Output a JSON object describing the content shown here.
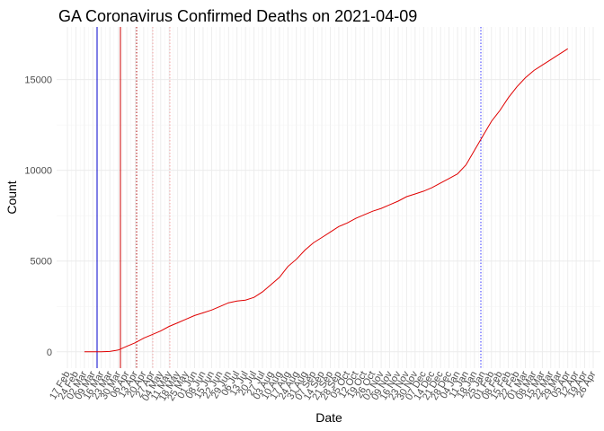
{
  "chart_data": {
    "type": "line",
    "title": "GA Coronavirus Confirmed Deaths on 2021-04-09",
    "x_label": "Date",
    "y_label": "Count",
    "categories": [
      "17 Feb",
      "24 Feb",
      "02 Mar",
      "09 Mar",
      "16 Mar",
      "23 Mar",
      "30 Mar",
      "06 Apr",
      "13 Apr",
      "20 Apr",
      "27 Apr",
      "04 May",
      "11 May",
      "18 May",
      "25 May",
      "01 Jun",
      "08 Jun",
      "15 Jun",
      "22 Jun",
      "29 Jun",
      "06 Jul",
      "13 Jul",
      "20 Jul",
      "27 Jul",
      "03 Aug",
      "10 Aug",
      "17 Aug",
      "24 Aug",
      "31 Aug",
      "07 Sep",
      "14 Sep",
      "21 Sep",
      "28 Sep",
      "05 Oct",
      "12 Oct",
      "19 Oct",
      "26 Oct",
      "02 Nov",
      "09 Nov",
      "16 Nov",
      "23 Nov",
      "30 Nov",
      "07 Dec",
      "14 Dec",
      "21 Dec",
      "28 Dec",
      "04 Jan",
      "11 Jan",
      "18 Jan",
      "25 Jan",
      "01 Feb",
      "08 Feb",
      "15 Feb",
      "22 Feb",
      "01 Mar",
      "08 Mar",
      "15 Mar",
      "22 Mar",
      "29 Mar",
      "05 Apr",
      "12 Apr",
      "19 Apr",
      "26 Apr"
    ],
    "values": [
      null,
      null,
      0,
      0,
      0,
      20,
      100,
      300,
      500,
      750,
      950,
      1150,
      1400,
      1600,
      1800,
      2000,
      2150,
      2300,
      2500,
      2700,
      2800,
      2850,
      3000,
      3300,
      3700,
      4100,
      4700,
      5100,
      5600,
      6000,
      6300,
      6600,
      6900,
      7100,
      7350,
      7550,
      7750,
      7900,
      8100,
      8300,
      8550,
      8700,
      8850,
      9050,
      9300,
      9550,
      9800,
      10300,
      11100,
      11900,
      12700,
      13300,
      14000,
      14600,
      15100,
      15500,
      15800,
      16100,
      16400,
      16700,
      null,
      null,
      null
    ],
    "color": "#e00000",
    "ylim": [
      -900,
      17900
    ],
    "yticks": [
      0,
      5000,
      10000,
      15000
    ],
    "grid": true
  }
}
